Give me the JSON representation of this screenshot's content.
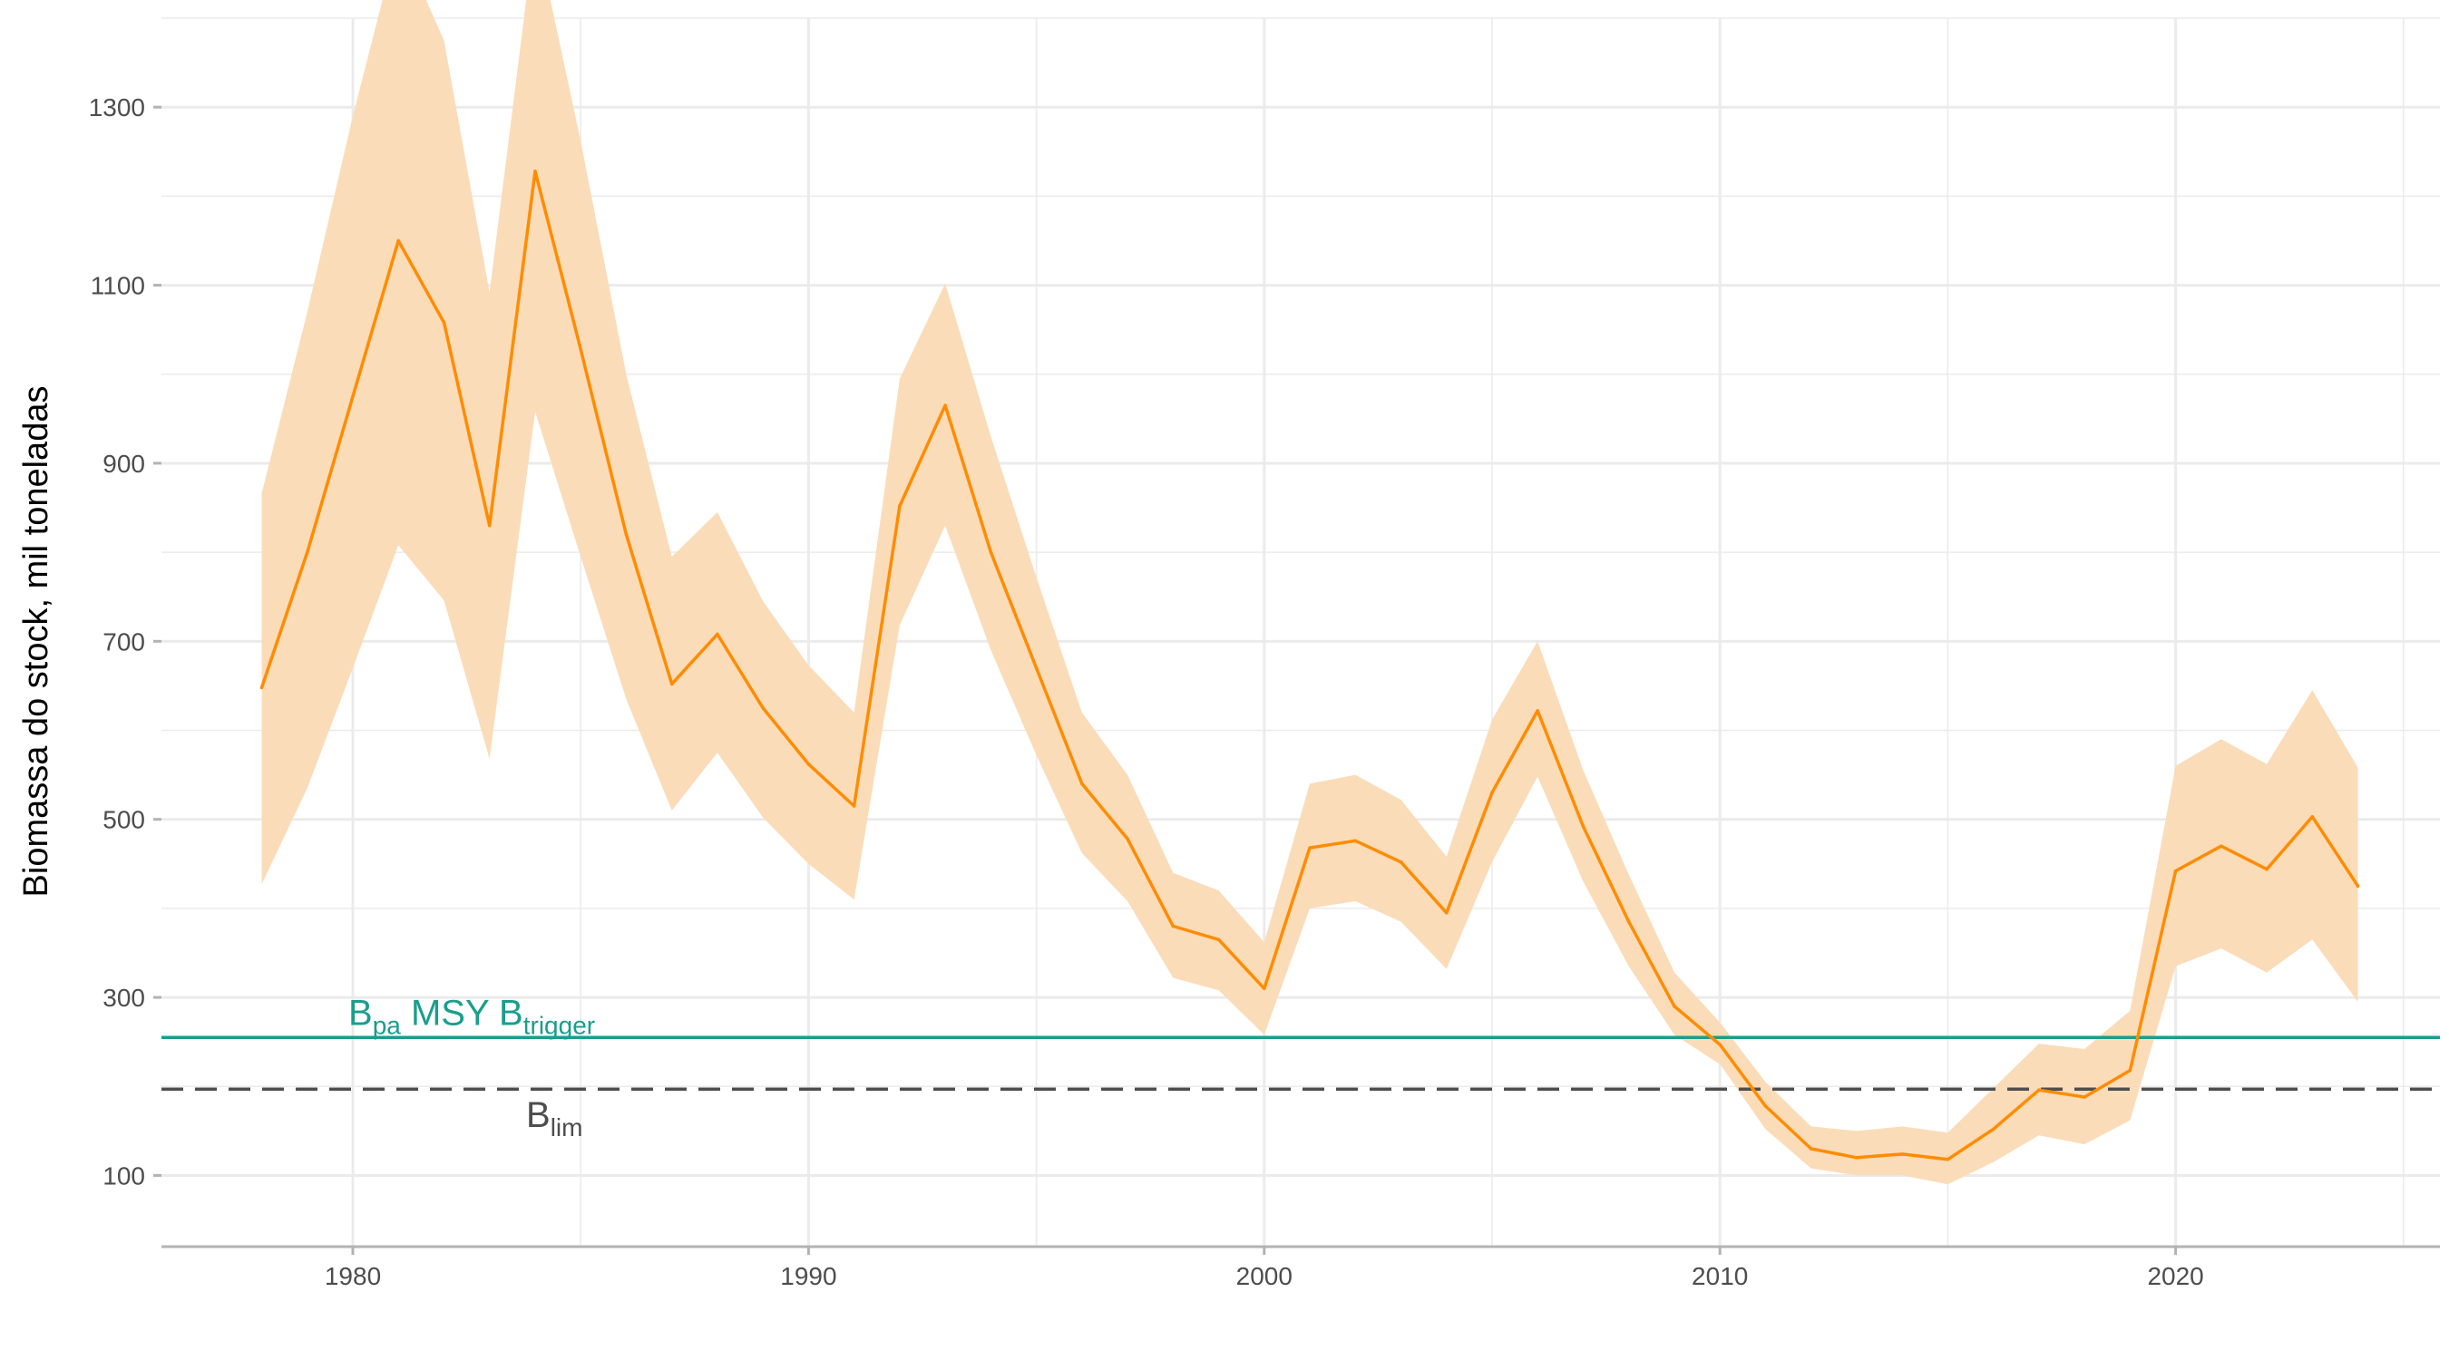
{
  "chart_data": {
    "type": "line",
    "title": "",
    "xlabel": "",
    "ylabel": "Biomassa do stock, mil toneladas",
    "xlim": [
      1975.8,
      2025.8
    ],
    "ylim": [
      20,
      1400
    ],
    "x_ticks": [
      1980,
      1990,
      2000,
      2010,
      2020
    ],
    "y_ticks": [
      100,
      300,
      500,
      700,
      900,
      1100,
      1300
    ],
    "grid": true,
    "colors": {
      "line": "#ff8c00",
      "band": "#fbdcb9",
      "bpa": "#199e8c",
      "blim": "#4d4d4d",
      "grid": "#ebebeb",
      "axis": "#b3b3b3"
    },
    "series": [
      {
        "years": [
          1978,
          1979,
          1980,
          1981,
          1982,
          1983,
          1984,
          1985,
          1986,
          1987,
          1988,
          1989,
          1990,
          1991,
          1992,
          1993,
          1994,
          1995,
          1996,
          1997,
          1998,
          1999,
          2000,
          2001,
          2002,
          2003,
          2004,
          2005,
          2006,
          2007,
          2008,
          2009,
          2010,
          2011,
          2012,
          2013,
          2014,
          2015,
          2016,
          2017,
          2018,
          2019,
          2020,
          2021,
          2022,
          2023,
          2024
        ],
        "values": [
          648,
          800,
          975,
          1150,
          1058,
          830,
          1228,
          1028,
          820,
          652,
          708,
          625,
          562,
          515,
          852,
          965,
          800,
          670,
          540,
          478,
          380,
          365,
          310,
          468,
          476,
          452,
          395,
          530,
          622,
          492,
          385,
          290,
          247,
          178,
          130,
          120,
          124,
          118,
          152,
          196,
          188,
          218,
          442,
          470,
          444,
          503,
          425
        ],
        "lower": [
          427,
          535,
          670,
          808,
          746,
          568,
          958,
          795,
          635,
          510,
          575,
          502,
          450,
          410,
          718,
          830,
          690,
          572,
          462,
          408,
          322,
          308,
          258,
          400,
          408,
          385,
          332,
          452,
          548,
          430,
          335,
          258,
          225,
          152,
          108,
          100,
          100,
          90,
          115,
          145,
          135,
          162,
          335,
          355,
          328,
          365,
          295
        ],
        "upper": [
          866,
          1070,
          1290,
          1490,
          1375,
          1092,
          1500,
          1262,
          1000,
          795,
          845,
          745,
          673,
          620,
          995,
          1102,
          930,
          772,
          620,
          550,
          440,
          420,
          362,
          540,
          550,
          522,
          458,
          612,
          700,
          555,
          438,
          328,
          272,
          205,
          155,
          150,
          155,
          148,
          198,
          248,
          242,
          285,
          560,
          590,
          562,
          645,
          558
        ]
      }
    ],
    "reference_lines": [
      {
        "id": "bpa",
        "label_main": "B",
        "label_sub": "pa",
        "label_mid": " MSY B",
        "label_sub2": "trigger",
        "y": 255,
        "style": "solid"
      },
      {
        "id": "blim",
        "label_main": "B",
        "label_sub": "lim",
        "y": 197,
        "style": "dashed"
      }
    ]
  }
}
